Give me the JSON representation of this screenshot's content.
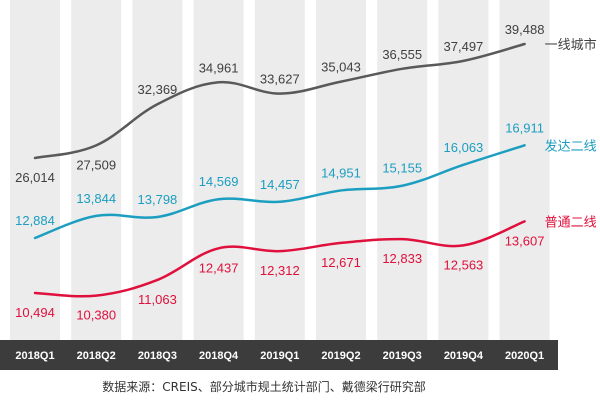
{
  "chart_data": {
    "type": "line",
    "categories": [
      "2018Q1",
      "2018Q2",
      "2018Q3",
      "2018Q4",
      "2019Q1",
      "2019Q2",
      "2019Q3",
      "2019Q4",
      "2020Q1"
    ],
    "series": [
      {
        "name": "一线城市",
        "color": "#595959",
        "values": [
          26014,
          27509,
          32369,
          34961,
          33627,
          35043,
          36555,
          37497,
          39488
        ],
        "labels": [
          "26,014",
          "27,509",
          "32,369",
          "34,961",
          "33,627",
          "35,043",
          "36,555",
          "37,497",
          "39,488"
        ]
      },
      {
        "name": "发达二线",
        "color": "#1b9ec0",
        "values": [
          12884,
          13844,
          13798,
          14569,
          14457,
          14951,
          15155,
          16063,
          16911
        ],
        "labels": [
          "12,884",
          "13,844",
          "13,798",
          "14,569",
          "14,457",
          "14,951",
          "15,155",
          "16,063",
          "16,911"
        ]
      },
      {
        "name": "普通二线",
        "color": "#e0103c",
        "values": [
          10494,
          10380,
          11063,
          12437,
          12312,
          12671,
          12833,
          12563,
          13607
        ],
        "labels": [
          "10,494",
          "10,380",
          "11,063",
          "12,437",
          "12,312",
          "12,671",
          "12,833",
          "12,563",
          "13,607"
        ]
      }
    ],
    "source": "数据来源：CREIS、部分城市规土统计部门、戴德梁行研究部",
    "grid": false,
    "legend": "inline-right"
  }
}
